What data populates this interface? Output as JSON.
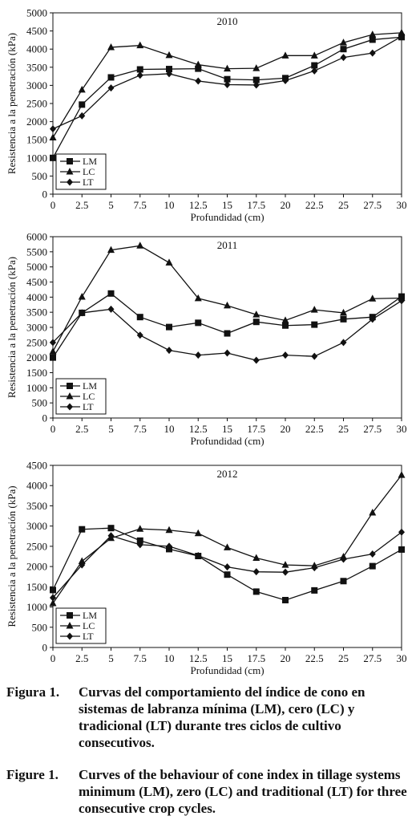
{
  "chart_data": [
    {
      "type": "line",
      "title": "2010",
      "xlabel": "Profundidad (cm)",
      "ylabel": "Resistencia a la penetración (kPa)",
      "x": [
        0,
        2.5,
        5,
        7.5,
        10,
        12.5,
        15,
        17.5,
        20,
        22.5,
        25,
        27.5,
        30
      ],
      "x_ticks": [
        "0",
        "2.5",
        "5",
        "7.5",
        "10",
        "12.5",
        "15",
        "17.5",
        "20",
        "22.5",
        "25",
        "27.5",
        "30"
      ],
      "ylim": [
        0,
        5000
      ],
      "y_ticks": [
        0,
        500,
        1000,
        1500,
        2000,
        2500,
        3000,
        3500,
        4000,
        4500,
        5000
      ],
      "series": [
        {
          "name": "LM",
          "marker": "square",
          "values": [
            1000,
            2470,
            3220,
            3440,
            3450,
            3460,
            3170,
            3150,
            3200,
            3550,
            4000,
            4260,
            4330
          ]
        },
        {
          "name": "LC",
          "marker": "triangle",
          "values": [
            1560,
            2880,
            4050,
            4100,
            3830,
            3570,
            3460,
            3470,
            3820,
            3820,
            4180,
            4400,
            4450
          ]
        },
        {
          "name": "LT",
          "marker": "diamond",
          "values": [
            1800,
            2160,
            2930,
            3280,
            3320,
            3120,
            3020,
            3010,
            3130,
            3400,
            3770,
            3890,
            4350
          ]
        }
      ],
      "legend": "bottom-left",
      "grid": false
    },
    {
      "type": "line",
      "title": "2011",
      "xlabel": "Profundidad (cm)",
      "ylabel": "Resistencia a la penetración (kPa)",
      "x": [
        0,
        2.5,
        5,
        7.5,
        10,
        12.5,
        15,
        17.5,
        20,
        22.5,
        25,
        27.5,
        30
      ],
      "x_ticks": [
        "0",
        "2.5",
        "5",
        "7.5",
        "10",
        "12.5",
        "15",
        "17.5",
        "20",
        "22.5",
        "25",
        "27.5",
        "30"
      ],
      "ylim": [
        0,
        6000
      ],
      "y_ticks": [
        0,
        500,
        1000,
        1500,
        2000,
        2500,
        3000,
        3500,
        4000,
        4500,
        5000,
        5500,
        6000
      ],
      "series": [
        {
          "name": "LM",
          "marker": "square",
          "values": [
            2000,
            3480,
            4120,
            3340,
            3010,
            3150,
            2800,
            3180,
            3060,
            3090,
            3270,
            3340,
            4020
          ]
        },
        {
          "name": "LC",
          "marker": "triangle",
          "values": [
            2200,
            4010,
            5560,
            5700,
            5140,
            3960,
            3720,
            3420,
            3230,
            3580,
            3480,
            3950,
            3970
          ]
        },
        {
          "name": "LT",
          "marker": "diamond",
          "values": [
            2500,
            3480,
            3600,
            2740,
            2240,
            2080,
            2150,
            1910,
            2080,
            2040,
            2500,
            3270,
            3880
          ]
        }
      ],
      "legend": "bottom-left",
      "grid": false
    },
    {
      "type": "line",
      "title": "2012",
      "xlabel": "Profundidad (cm)",
      "ylabel": "Resistencia a la penetración (kPa)",
      "x": [
        0,
        2.5,
        5,
        7.5,
        10,
        12.5,
        15,
        17.5,
        20,
        22.5,
        25,
        27.5,
        30
      ],
      "x_ticks": [
        "0",
        "2.5",
        "5",
        "7.5",
        "10",
        "12.5",
        "15",
        "17.5",
        "20",
        "22.5",
        "25",
        "27.5",
        "30"
      ],
      "ylim": [
        0,
        4500
      ],
      "y_ticks": [
        0,
        500,
        1000,
        1500,
        2000,
        2500,
        3000,
        3500,
        4000,
        4500
      ],
      "series": [
        {
          "name": "LM",
          "marker": "square",
          "values": [
            1420,
            2920,
            2950,
            2640,
            2430,
            2260,
            1800,
            1380,
            1170,
            1410,
            1640,
            2010,
            2420
          ]
        },
        {
          "name": "LC",
          "marker": "triangle",
          "values": [
            1090,
            2130,
            2700,
            2930,
            2900,
            2820,
            2470,
            2210,
            2040,
            2020,
            2240,
            3330,
            4260
          ]
        },
        {
          "name": "LT",
          "marker": "diamond",
          "values": [
            1230,
            2040,
            2760,
            2540,
            2500,
            2270,
            1990,
            1870,
            1860,
            1970,
            2180,
            2310,
            2850
          ]
        }
      ],
      "legend": "bottom-left",
      "grid": false
    }
  ],
  "captions": {
    "es_label": "Figura 1.",
    "es_text": "Curvas del comportamiento del índice de cono en sistemas de labranza mínima (LM), cero (LC) y tradicional (LT) durante tres ciclos de cultivo consecutivos.",
    "en_label": "Figure 1.",
    "en_text": "Curves of the behaviour of cone index in tillage systems minimum (LM), zero (LC) and traditional (LT) for three consecutive crop cycles."
  }
}
